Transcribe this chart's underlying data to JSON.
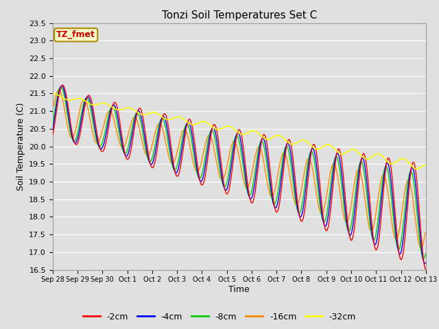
{
  "title": "Tonzi Soil Temperatures Set C",
  "xlabel": "Time",
  "ylabel": "Soil Temperature (C)",
  "ylim": [
    16.5,
    23.5
  ],
  "annotation": "TZ_fmet",
  "annotation_color": "#cc0000",
  "annotation_bg": "#ffffcc",
  "annotation_border": "#aa8800",
  "line_colors": {
    "-2cm": "#ff0000",
    "-4cm": "#0000ff",
    "-8cm": "#00cc00",
    "-16cm": "#ff8800",
    "-32cm": "#ffff00"
  },
  "bg_color": "#e0e0e0",
  "grid_color": "#ffffff",
  "tick_labels": [
    "Sep 28",
    "Sep 29",
    "Sep 30",
    "Oct 1",
    "Oct 2",
    "Oct 3",
    "Oct 4",
    "Oct 5",
    "Oct 6",
    "Oct 7",
    "Oct 8",
    "Oct 9",
    "Oct 10",
    "Oct 11",
    "Oct 12",
    "Oct 13"
  ],
  "yticks": [
    16.5,
    17.0,
    17.5,
    18.0,
    18.5,
    19.0,
    19.5,
    20.0,
    20.5,
    21.0,
    21.5,
    22.0,
    22.5,
    23.0,
    23.5
  ]
}
